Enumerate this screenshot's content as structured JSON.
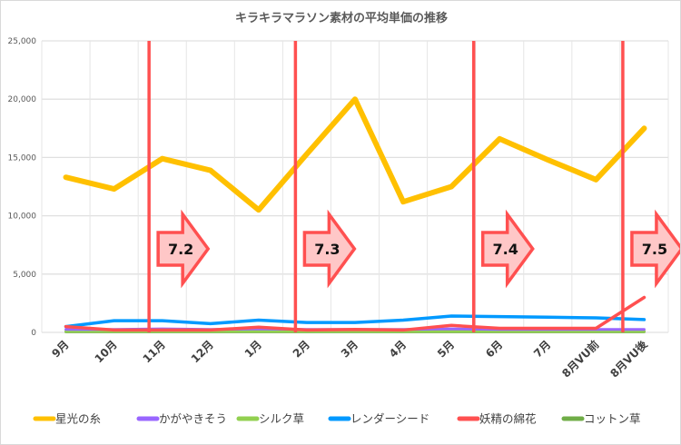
{
  "chart_data": {
    "type": "line",
    "title": "キラキラマラソン素材の平均単価の推移",
    "categories": [
      "9月",
      "10月",
      "11月",
      "12月",
      "1月",
      "2月",
      "3月",
      "4月",
      "5月",
      "6月",
      "7月",
      "8月VU前",
      "8月VU後"
    ],
    "ylim": [
      0,
      25000
    ],
    "yticks": [
      0,
      5000,
      10000,
      15000,
      20000,
      25000
    ],
    "ytick_labels": [
      "0",
      "5,000",
      "10,000",
      "15,000",
      "20,000",
      "25,000"
    ],
    "grid": true,
    "legend": "bottom",
    "series": [
      {
        "name": "星光の糸",
        "color": "#ffc000",
        "values": [
          13300,
          12300,
          14900,
          13900,
          10500,
          15300,
          20000,
          11200,
          12500,
          16600,
          14800,
          13100,
          17500
        ]
      },
      {
        "name": "かがやきそう",
        "color": "#9966ff",
        "values": [
          250,
          250,
          300,
          250,
          300,
          250,
          250,
          250,
          300,
          250,
          250,
          250,
          250
        ]
      },
      {
        "name": "シルク草",
        "color": "#92d050",
        "values": [
          100,
          100,
          100,
          100,
          100,
          100,
          100,
          100,
          100,
          100,
          100,
          100,
          100
        ]
      },
      {
        "name": "レンダーシード",
        "color": "#0099ff",
        "values": [
          500,
          1000,
          1000,
          750,
          1050,
          850,
          850,
          1050,
          1400,
          1350,
          1300,
          1250,
          1100
        ]
      },
      {
        "name": "妖精の綿花",
        "color": "#ff5050",
        "values": [
          500,
          200,
          200,
          200,
          450,
          200,
          250,
          200,
          600,
          350,
          350,
          350,
          3000
        ]
      },
      {
        "name": "コットン草",
        "color": "#70ad47",
        "values": [
          50,
          50,
          50,
          50,
          50,
          50,
          50,
          50,
          50,
          50,
          50,
          50,
          50
        ]
      }
    ],
    "annotations": [
      {
        "label": "7.2",
        "after_category": "10月"
      },
      {
        "label": "7.3",
        "after_category": "1月"
      },
      {
        "label": "7.4",
        "after_category": "5月"
      },
      {
        "label": "7.5",
        "after_category": "8月VU前"
      }
    ],
    "annotation_color": "#ff5050",
    "annotation_fill": "#ffc7c7"
  }
}
